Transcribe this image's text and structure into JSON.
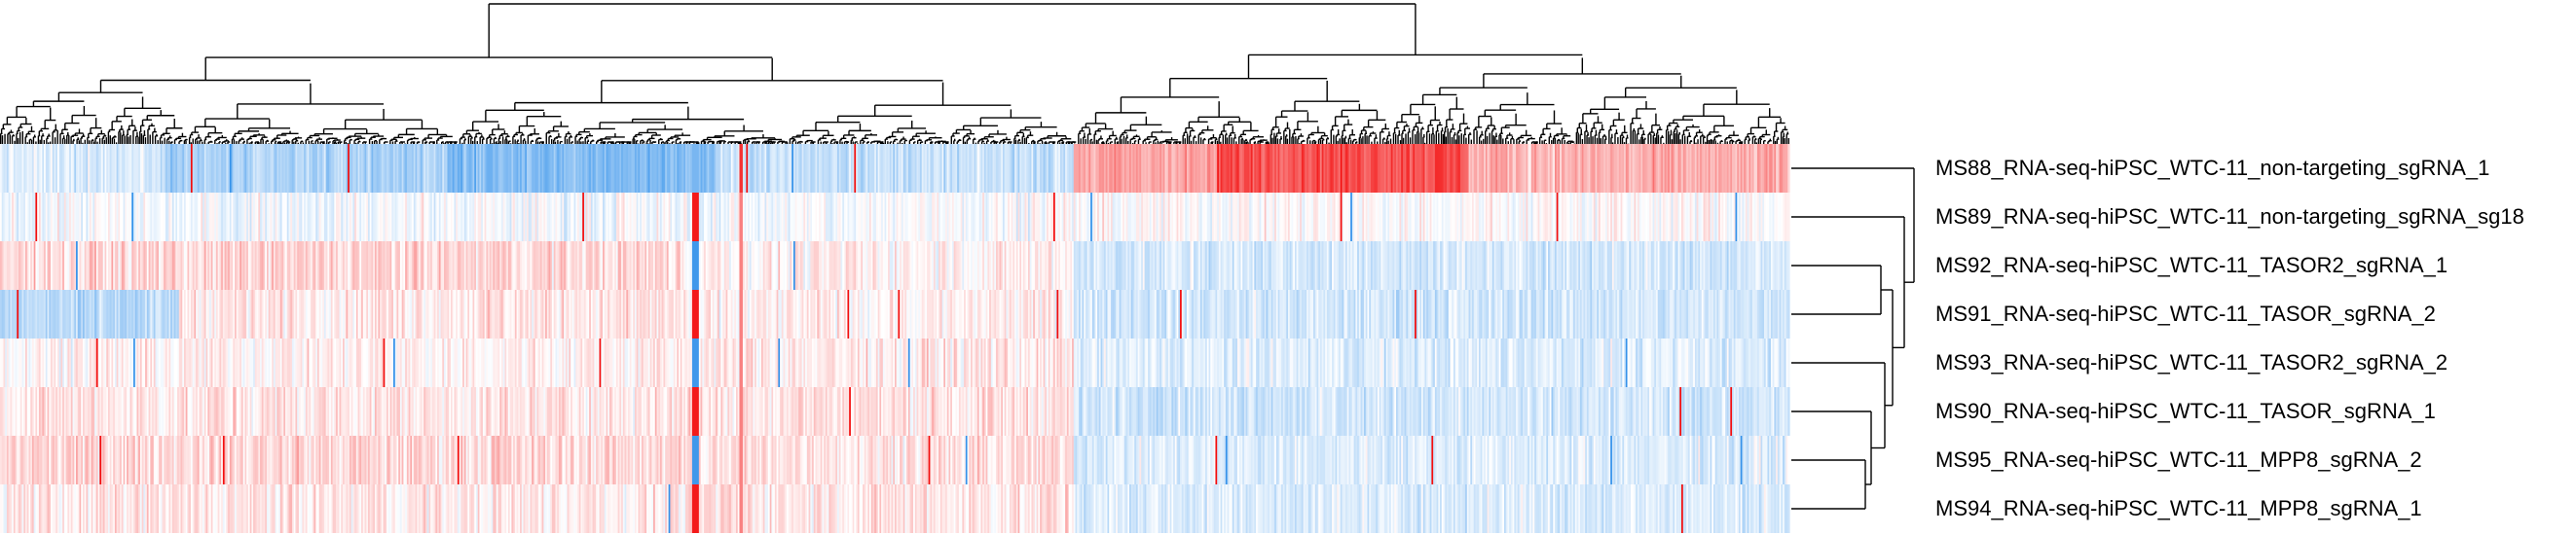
{
  "chart_data": {
    "type": "heatmap",
    "title": "",
    "xlabel": "",
    "ylabel": "",
    "legend": "none",
    "grid": false,
    "row_dendrogram": true,
    "column_dendrogram": true,
    "color_scale": {
      "low": "#1f86e8",
      "mid": "#ffffff",
      "high": "#f20000"
    },
    "rows": [
      "MS88_RNA-seq-hiPSC_WTC-11_non-targeting_sgRNA_1",
      "MS89_RNA-seq-hiPSC_WTC-11_non-targeting_sgRNA_sg18",
      "MS92_RNA-seq-hiPSC_WTC-11_TASOR2_sgRNA_1",
      "MS91_RNA-seq-hiPSC_WTC-11_TASOR_sgRNA_2",
      "MS93_RNA-seq-hiPSC_WTC-11_TASOR2_sgRNA_2",
      "MS90_RNA-seq-hiPSC_WTC-11_TASOR_sgRNA_1",
      "MS95_RNA-seq-hiPSC_WTC-11_MPP8_sgRNA_2",
      "MS94_RNA-seq-hiPSC_WTC-11_MPP8_sgRNA_1"
    ]
  }
}
